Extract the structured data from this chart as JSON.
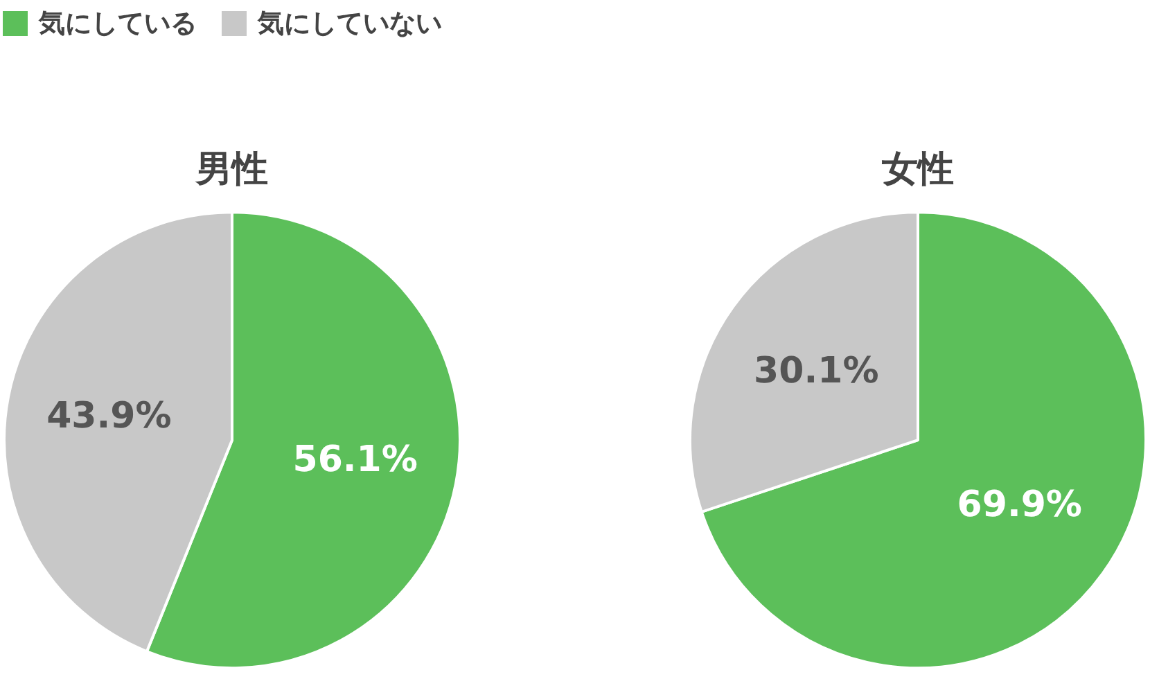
{
  "chart_data": [
    {
      "type": "pie",
      "title": "男性",
      "categories": [
        "気にしている",
        "気にしていない"
      ],
      "values": [
        56.1,
        43.9
      ],
      "colors": [
        "#5cbf5a",
        "#c8c8c8"
      ],
      "value_labels": [
        "56.1%",
        "43.9%"
      ],
      "legend": "top left"
    },
    {
      "type": "pie",
      "title": "女性",
      "categories": [
        null,
        null
      ],
      "values": [
        69.9,
        30.1
      ],
      "colors": [
        "#5cbf5a",
        "#c8c8c8"
      ],
      "value_labels": [
        "69.9%",
        "30.1%"
      ]
    }
  ]
}
